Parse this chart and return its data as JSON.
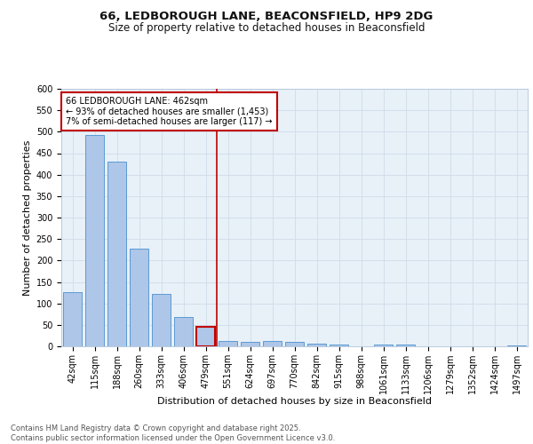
{
  "title_line1": "66, LEDBOROUGH LANE, BEACONSFIELD, HP9 2DG",
  "title_line2": "Size of property relative to detached houses in Beaconsfield",
  "xlabel": "Distribution of detached houses by size in Beaconsfield",
  "ylabel": "Number of detached properties",
  "categories": [
    "42sqm",
    "115sqm",
    "188sqm",
    "260sqm",
    "333sqm",
    "406sqm",
    "479sqm",
    "551sqm",
    "624sqm",
    "697sqm",
    "770sqm",
    "842sqm",
    "915sqm",
    "988sqm",
    "1061sqm",
    "1133sqm",
    "1206sqm",
    "1279sqm",
    "1352sqm",
    "1424sqm",
    "1497sqm"
  ],
  "values": [
    127,
    492,
    430,
    228,
    122,
    68,
    45,
    13,
    10,
    13,
    10,
    7,
    5,
    0,
    5,
    5,
    0,
    0,
    0,
    0,
    3
  ],
  "bar_color": "#aec6e8",
  "bar_edge_color": "#5b9bd5",
  "highlight_bar_index": 6,
  "highlight_bar_edge_color": "#c00000",
  "vline_color": "#c00000",
  "annotation_text": "66 LEDBOROUGH LANE: 462sqm\n← 93% of detached houses are smaller (1,453)\n7% of semi-detached houses are larger (117) →",
  "annotation_box_color": "#c00000",
  "ylim": [
    0,
    600
  ],
  "yticks": [
    0,
    50,
    100,
    150,
    200,
    250,
    300,
    350,
    400,
    450,
    500,
    550,
    600
  ],
  "grid_color": "#d0dce8",
  "bg_color": "#e8f0f8",
  "footer_text": "Contains HM Land Registry data © Crown copyright and database right 2025.\nContains public sector information licensed under the Open Government Licence v3.0.",
  "title_fontsize": 9.5,
  "subtitle_fontsize": 8.5,
  "axis_label_fontsize": 8,
  "tick_fontsize": 7,
  "annotation_fontsize": 7,
  "footer_fontsize": 6
}
